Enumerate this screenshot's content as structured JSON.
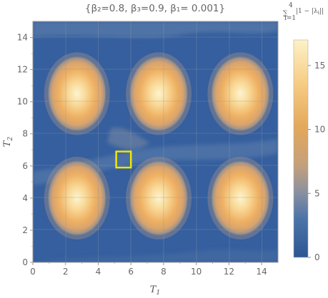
{
  "chart_data": {
    "type": "heatmap",
    "title": "{β₂=0.8, β₃=0.9, β₁= 0.001}",
    "xlabel": "T₁",
    "ylabel": "T₂",
    "xlim": [
      0,
      15
    ],
    "ylim": [
      0,
      15
    ],
    "x_ticks": [
      "0",
      "2",
      "4",
      "6",
      "8",
      "10",
      "12",
      "14"
    ],
    "y_ticks": [
      "0",
      "2",
      "4",
      "6",
      "8",
      "10",
      "12",
      "14"
    ],
    "colorbar": {
      "label": "∑ᵢ₌₁⁴ |1 − |λᵢ||",
      "range": [
        0,
        17
      ],
      "ticks": [
        "0",
        "5",
        "10",
        "15"
      ]
    },
    "peaks": [
      {
        "x": 2.7,
        "y": 10.5,
        "value": 17
      },
      {
        "x": 7.7,
        "y": 10.5,
        "value": 17
      },
      {
        "x": 12.7,
        "y": 10.5,
        "value": 17
      },
      {
        "x": 2.7,
        "y": 4.0,
        "value": 17
      },
      {
        "x": 7.7,
        "y": 4.0,
        "value": 17
      },
      {
        "x": 12.7,
        "y": 4.0,
        "value": 17
      }
    ],
    "highlight_box": {
      "x_range": [
        5.1,
        6.0
      ],
      "y_range": [
        5.9,
        6.9
      ],
      "color": "#f2e600"
    },
    "colors": {
      "low": "#2f5a9a",
      "mid": "#c6a57e",
      "high": "#fbf4cc",
      "box": "#f2e600"
    }
  }
}
